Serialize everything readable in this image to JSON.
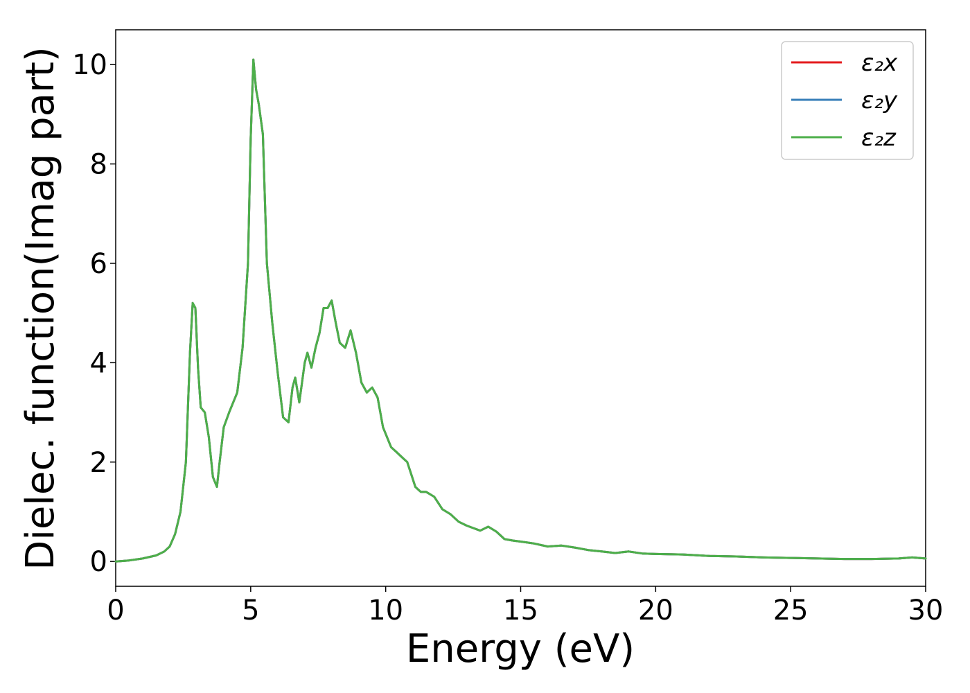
{
  "chart_data": {
    "type": "line",
    "title": "",
    "xlabel": "Energy (eV)",
    "ylabel": "Dielec. function(Imag part)",
    "xlim": [
      0,
      30
    ],
    "ylim": [
      -0.5,
      10.7
    ],
    "xticks": [
      "0",
      "5",
      "10",
      "15",
      "20",
      "25",
      "30"
    ],
    "yticks": [
      "0",
      "2",
      "4",
      "6",
      "8",
      "10"
    ],
    "legend_position": "top-right",
    "grid": false,
    "x": [
      0,
      0.5,
      1.0,
      1.5,
      1.8,
      2.0,
      2.2,
      2.4,
      2.6,
      2.75,
      2.85,
      2.95,
      3.05,
      3.15,
      3.3,
      3.45,
      3.6,
      3.75,
      3.85,
      4.0,
      4.2,
      4.5,
      4.7,
      4.9,
      5.0,
      5.1,
      5.2,
      5.3,
      5.45,
      5.6,
      5.8,
      6.0,
      6.2,
      6.4,
      6.55,
      6.65,
      6.8,
      7.0,
      7.1,
      7.25,
      7.4,
      7.55,
      7.7,
      7.85,
      8.0,
      8.15,
      8.3,
      8.5,
      8.7,
      8.9,
      9.1,
      9.3,
      9.5,
      9.7,
      9.9,
      10.2,
      10.4,
      10.6,
      10.8,
      11.1,
      11.3,
      11.5,
      11.8,
      12.1,
      12.4,
      12.7,
      13.0,
      13.2,
      13.5,
      13.8,
      14.1,
      14.4,
      14.7,
      15.0,
      15.5,
      16.0,
      16.5,
      17.0,
      17.5,
      18.0,
      18.5,
      19.0,
      19.5,
      20.0,
      21.0,
      22.0,
      23.0,
      24.0,
      25.0,
      26.0,
      27.0,
      28.0,
      29.0,
      29.5,
      30.0
    ],
    "series": [
      {
        "name": "ε₂x",
        "color": "#e41a1c",
        "values": [
          0.0,
          0.02,
          0.06,
          0.12,
          0.2,
          0.3,
          0.55,
          1.0,
          2.0,
          4.2,
          5.2,
          5.1,
          3.9,
          3.1,
          3.0,
          2.5,
          1.7,
          1.5,
          2.0,
          2.7,
          3.0,
          3.4,
          4.3,
          6.0,
          8.5,
          10.1,
          9.5,
          9.2,
          8.6,
          6.0,
          4.8,
          3.8,
          2.9,
          2.8,
          3.5,
          3.7,
          3.2,
          4.0,
          4.2,
          3.9,
          4.3,
          4.6,
          5.1,
          5.1,
          5.25,
          4.8,
          4.4,
          4.3,
          4.65,
          4.2,
          3.6,
          3.4,
          3.5,
          3.3,
          2.7,
          2.3,
          2.2,
          2.1,
          2.0,
          1.5,
          1.4,
          1.4,
          1.3,
          1.05,
          0.95,
          0.8,
          0.72,
          0.68,
          0.62,
          0.7,
          0.6,
          0.45,
          0.42,
          0.4,
          0.36,
          0.3,
          0.32,
          0.28,
          0.23,
          0.2,
          0.17,
          0.2,
          0.16,
          0.15,
          0.14,
          0.11,
          0.1,
          0.08,
          0.07,
          0.06,
          0.05,
          0.05,
          0.06,
          0.08,
          0.06
        ]
      },
      {
        "name": "ε₂y",
        "color": "#377eb8",
        "values": [
          0.0,
          0.02,
          0.06,
          0.12,
          0.2,
          0.3,
          0.55,
          1.0,
          2.0,
          4.2,
          5.2,
          5.1,
          3.9,
          3.1,
          3.0,
          2.5,
          1.7,
          1.5,
          2.0,
          2.7,
          3.0,
          3.4,
          4.3,
          6.0,
          8.5,
          10.1,
          9.5,
          9.2,
          8.6,
          6.0,
          4.8,
          3.8,
          2.9,
          2.8,
          3.5,
          3.7,
          3.2,
          4.0,
          4.2,
          3.9,
          4.3,
          4.6,
          5.1,
          5.1,
          5.25,
          4.8,
          4.4,
          4.3,
          4.65,
          4.2,
          3.6,
          3.4,
          3.5,
          3.3,
          2.7,
          2.3,
          2.2,
          2.1,
          2.0,
          1.5,
          1.4,
          1.4,
          1.3,
          1.05,
          0.95,
          0.8,
          0.72,
          0.68,
          0.62,
          0.7,
          0.6,
          0.45,
          0.42,
          0.4,
          0.36,
          0.3,
          0.32,
          0.28,
          0.23,
          0.2,
          0.17,
          0.2,
          0.16,
          0.15,
          0.14,
          0.11,
          0.1,
          0.08,
          0.07,
          0.06,
          0.05,
          0.05,
          0.06,
          0.08,
          0.06
        ]
      },
      {
        "name": "ε₂z",
        "color": "#4daf4a",
        "values": [
          0.0,
          0.02,
          0.06,
          0.12,
          0.2,
          0.3,
          0.55,
          1.0,
          2.0,
          4.2,
          5.2,
          5.1,
          3.9,
          3.1,
          3.0,
          2.5,
          1.7,
          1.5,
          2.0,
          2.7,
          3.0,
          3.4,
          4.3,
          6.0,
          8.5,
          10.1,
          9.5,
          9.2,
          8.6,
          6.0,
          4.8,
          3.8,
          2.9,
          2.8,
          3.5,
          3.7,
          3.2,
          4.0,
          4.2,
          3.9,
          4.3,
          4.6,
          5.1,
          5.1,
          5.25,
          4.8,
          4.4,
          4.3,
          4.65,
          4.2,
          3.6,
          3.4,
          3.5,
          3.3,
          2.7,
          2.3,
          2.2,
          2.1,
          2.0,
          1.5,
          1.4,
          1.4,
          1.3,
          1.05,
          0.95,
          0.8,
          0.72,
          0.68,
          0.62,
          0.7,
          0.6,
          0.45,
          0.42,
          0.4,
          0.36,
          0.3,
          0.32,
          0.28,
          0.23,
          0.2,
          0.17,
          0.2,
          0.16,
          0.15,
          0.14,
          0.11,
          0.1,
          0.08,
          0.07,
          0.06,
          0.05,
          0.05,
          0.06,
          0.08,
          0.06
        ]
      }
    ]
  }
}
